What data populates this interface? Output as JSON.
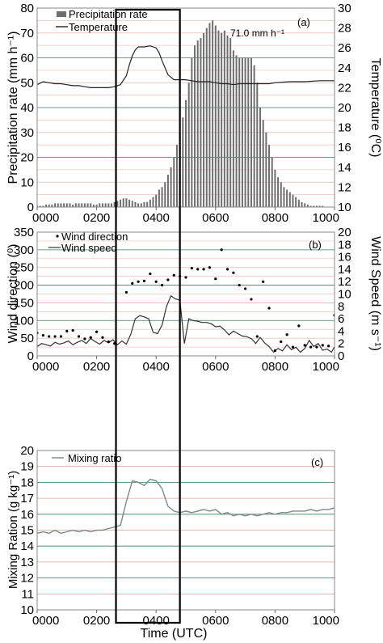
{
  "chart_data": [
    {
      "panel": "(a)",
      "type": "bar",
      "xlabel": "",
      "ylabel": "Precipitation rate (mm h⁻¹)",
      "y2label": "Temperature (⁰C)",
      "x_ticks": [
        "0000",
        "0200",
        "0400",
        "0600",
        "0800",
        "1000"
      ],
      "xlim": [
        0,
        1000
      ],
      "ylim": [
        0,
        80
      ],
      "y2lim": [
        10,
        30
      ],
      "y_ticks": [
        0,
        10,
        20,
        30,
        40,
        50,
        60,
        70,
        80
      ],
      "y2_ticks": [
        10,
        12,
        14,
        16,
        18,
        20,
        22,
        24,
        26,
        28,
        30
      ],
      "annotation": "71.0 mm h⁻¹",
      "legend_position": "top-left",
      "grid": "horizontal",
      "series": [
        {
          "name": "Precipitation rate",
          "kind": "bar",
          "axis": "left",
          "color": "#6e6e6e",
          "x": [
            0,
            10,
            20,
            30,
            40,
            50,
            60,
            70,
            80,
            90,
            100,
            110,
            120,
            130,
            140,
            150,
            160,
            170,
            180,
            190,
            200,
            210,
            220,
            230,
            240,
            250,
            260,
            270,
            280,
            290,
            300,
            310,
            320,
            330,
            340,
            350,
            360,
            370,
            380,
            390,
            400,
            410,
            420,
            430,
            440,
            450,
            460,
            470,
            480,
            490,
            500,
            510,
            520,
            530,
            540,
            550,
            560,
            570,
            580,
            590,
            600,
            610,
            620,
            630,
            640,
            650,
            660,
            670,
            680,
            690,
            700,
            710,
            720,
            730,
            740,
            750,
            760,
            770,
            780,
            790,
            800,
            810,
            820,
            830,
            840,
            850,
            860,
            870,
            880,
            890,
            900,
            910,
            920,
            930,
            940,
            950,
            960,
            970,
            980,
            990,
            1000
          ],
          "values": [
            0.5,
            0.5,
            0.5,
            1,
            1,
            1,
            1.5,
            1.5,
            1.5,
            1.5,
            1.5,
            1.5,
            1,
            1.5,
            1.5,
            1.5,
            1.5,
            1.5,
            1.5,
            1,
            1,
            1.5,
            1.5,
            1.5,
            1.5,
            1.5,
            2,
            2.5,
            3,
            3.5,
            3.5,
            3,
            2.5,
            2,
            1.5,
            1.5,
            2,
            2,
            3,
            4,
            5,
            7,
            8,
            10,
            13,
            16,
            20,
            25,
            30,
            36,
            43,
            50,
            60,
            65,
            67,
            68,
            70,
            72,
            74,
            75,
            73,
            71,
            70,
            71,
            69,
            68,
            63,
            61,
            60,
            60,
            60,
            60,
            60,
            57,
            50,
            40,
            35,
            30,
            25,
            20,
            15,
            12,
            10,
            8,
            7,
            6,
            5,
            4,
            3,
            2,
            1.5,
            1,
            0.5,
            0.5,
            0.5,
            0.5,
            0.5,
            0,
            0,
            0,
            0
          ]
        },
        {
          "name": "Temperature",
          "kind": "line",
          "axis": "right",
          "color": "#222222",
          "x": [
            0,
            20,
            40,
            60,
            80,
            100,
            120,
            140,
            160,
            180,
            200,
            220,
            240,
            260,
            280,
            300,
            310,
            320,
            330,
            340,
            360,
            380,
            400,
            410,
            420,
            440,
            460,
            480,
            500,
            520,
            540,
            560,
            580,
            600,
            620,
            640,
            660,
            680,
            700,
            720,
            740,
            760,
            780,
            800,
            850,
            900,
            950,
            1000
          ],
          "values": [
            22.3,
            22.6,
            22.5,
            22.4,
            22.4,
            22.3,
            22.2,
            22.2,
            22.1,
            22.0,
            22.0,
            22.0,
            22.0,
            22.1,
            22.3,
            23.2,
            24.3,
            25.2,
            25.8,
            26.1,
            26.1,
            26.2,
            26.0,
            25.5,
            24.7,
            23.3,
            22.8,
            22.8,
            22.8,
            22.7,
            22.6,
            22.6,
            22.6,
            22.5,
            22.4,
            22.4,
            22.3,
            22.4,
            22.4,
            22.4,
            22.4,
            22.4,
            22.4,
            22.5,
            22.6,
            22.6,
            22.7,
            22.7
          ]
        }
      ]
    },
    {
      "panel": "(b)",
      "type": "scatter",
      "xlabel": "",
      "ylabel": "Wind direction (⁰)",
      "y2label": "Wind Speed (m s⁻¹)",
      "x_ticks": [
        "0000",
        "0200",
        "0400",
        "0600",
        "0800",
        "1000"
      ],
      "xlim": [
        0,
        1000
      ],
      "ylim": [
        0,
        350
      ],
      "y2lim": [
        0,
        20
      ],
      "y_ticks": [
        0,
        50,
        100,
        150,
        200,
        250,
        300,
        350
      ],
      "y2_ticks": [
        0,
        2,
        4,
        6,
        8,
        10,
        12,
        14,
        16,
        18,
        20
      ],
      "legend_position": "top-left",
      "grid": "horizontal",
      "series": [
        {
          "name": "Wind direction",
          "kind": "points",
          "axis": "left",
          "color": "#000000",
          "x": [
            0,
            20,
            40,
            60,
            80,
            100,
            120,
            140,
            160,
            180,
            200,
            220,
            240,
            260,
            300,
            320,
            340,
            360,
            380,
            400,
            420,
            440,
            460,
            480,
            500,
            520,
            540,
            560,
            580,
            600,
            620,
            640,
            660,
            680,
            700,
            720,
            740,
            760,
            780,
            800,
            820,
            840,
            860,
            880,
            900,
            920,
            940,
            960,
            980,
            1000
          ],
          "values": [
            65,
            58,
            55,
            55,
            55,
            70,
            72,
            55,
            48,
            52,
            68,
            52,
            40,
            35,
            180,
            205,
            210,
            212,
            232,
            210,
            200,
            215,
            228,
            225,
            222,
            248,
            245,
            245,
            250,
            218,
            300,
            245,
            235,
            200,
            190,
            160,
            55,
            210,
            135,
            15,
            40,
            60,
            25,
            85,
            30,
            25,
            25,
            30,
            28,
            115
          ]
        },
        {
          "name": "Wind speed",
          "kind": "line",
          "axis": "right",
          "color": "#333333",
          "x": [
            0,
            15,
            30,
            45,
            60,
            75,
            90,
            105,
            120,
            135,
            150,
            165,
            180,
            195,
            210,
            225,
            240,
            255,
            270,
            285,
            300,
            315,
            330,
            345,
            360,
            375,
            390,
            405,
            420,
            435,
            450,
            465,
            480,
            495,
            510,
            525,
            540,
            555,
            570,
            585,
            600,
            615,
            630,
            645,
            660,
            675,
            690,
            705,
            720,
            735,
            750,
            765,
            780,
            795,
            810,
            825,
            840,
            855,
            870,
            885,
            900,
            915,
            930,
            945,
            960,
            975,
            990,
            1000
          ],
          "values": [
            1.5,
            2.0,
            1.8,
            1.6,
            2.2,
            1.9,
            2.1,
            2.4,
            1.8,
            2.2,
            2.5,
            2.0,
            2.8,
            2.3,
            1.9,
            2.5,
            2.1,
            2.6,
            1.8,
            2.4,
            1.9,
            3.5,
            6.0,
            6.5,
            6.3,
            6.0,
            3.8,
            3.6,
            5.0,
            8.0,
            9.7,
            9.2,
            9.0,
            2.0,
            6.0,
            5.7,
            5.6,
            5.4,
            5.4,
            5.2,
            4.7,
            4.8,
            4.2,
            3.4,
            4.0,
            3.6,
            3.2,
            3.1,
            2.8,
            2.0,
            3.0,
            2.1,
            1.5,
            0.6,
            1.2,
            0.8,
            1.8,
            1.0,
            1.4,
            0.6,
            1.2,
            2.5,
            1.5,
            2.0,
            0.9,
            1.1,
            0.6,
            1.5
          ]
        }
      ]
    },
    {
      "panel": "(c)",
      "type": "line",
      "xlabel": "Time (UTC)",
      "ylabel": "Mixing Ration (g kg⁻¹)",
      "x_ticks": [
        "0000",
        "0200",
        "0400",
        "0600",
        "0800",
        "1000"
      ],
      "xlim": [
        0,
        1000
      ],
      "ylim": [
        10,
        20
      ],
      "y_ticks": [
        10,
        11,
        12,
        13,
        14,
        15,
        16,
        17,
        18,
        19,
        20
      ],
      "legend_position": "top-left",
      "grid": "horizontal",
      "series": [
        {
          "name": "Mixing ratio",
          "kind": "line",
          "axis": "left",
          "color": "#7a8a86",
          "x": [
            0,
            20,
            40,
            60,
            80,
            100,
            120,
            140,
            160,
            180,
            200,
            220,
            240,
            260,
            280,
            300,
            320,
            340,
            360,
            380,
            400,
            420,
            440,
            460,
            480,
            500,
            520,
            540,
            560,
            580,
            600,
            620,
            640,
            660,
            680,
            700,
            720,
            740,
            760,
            780,
            800,
            820,
            840,
            860,
            880,
            900,
            920,
            940,
            960,
            980,
            1000
          ],
          "values": [
            14.8,
            14.9,
            14.8,
            15.0,
            14.8,
            14.9,
            15.0,
            14.9,
            15.0,
            14.9,
            15.0,
            15.0,
            15.1,
            15.2,
            15.3,
            16.8,
            18.1,
            18.0,
            17.8,
            18.2,
            18.1,
            17.6,
            16.5,
            16.2,
            16.1,
            16.2,
            16.1,
            16.2,
            16.3,
            16.2,
            16.3,
            16.0,
            16.1,
            15.9,
            16.0,
            15.9,
            16.0,
            15.9,
            16.0,
            16.1,
            16.0,
            16.1,
            16.1,
            16.2,
            16.2,
            16.2,
            16.3,
            16.2,
            16.3,
            16.3,
            16.4
          ]
        }
      ]
    }
  ],
  "highlight_box": {
    "x_start": 265,
    "x_end": 480
  }
}
